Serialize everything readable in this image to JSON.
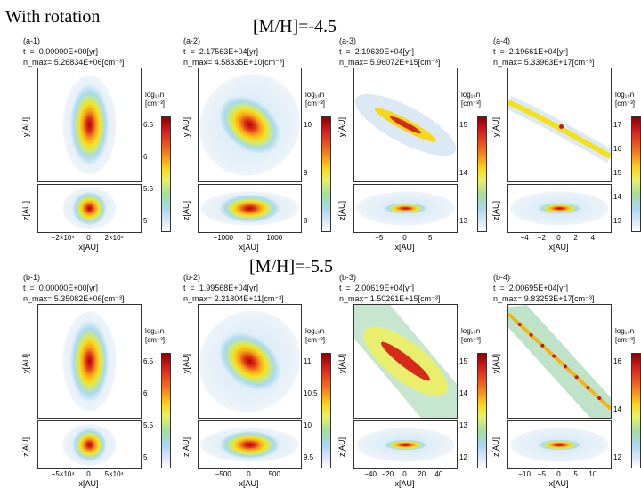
{
  "slide": {
    "label_rotation": "With rotation",
    "label_top": "[M/H]=-4.5",
    "label_bottom": "[M/H]=-5.5"
  },
  "panels": [
    {
      "id": "a-1",
      "time": "t  =  0.00000E+00[yr]",
      "nmax": "n_max= 5.26834E+06[cm⁻³]",
      "xlabel": "x[AU]",
      "ylabel_top": "y[AU]",
      "ylabel_bot": "z[AU]",
      "xticks": [
        "−2×10⁴",
        "0",
        "2×10⁴"
      ],
      "cb_title": "log₁₀n\n[cm⁻³]",
      "cb_ticks": [
        "6.5",
        "6",
        "5.5",
        "5"
      ],
      "shape": "ellipse"
    },
    {
      "id": "a-2",
      "time": "t  =  2.17563E+04[yr]",
      "nmax": "n_max= 4.58335E+10[cm⁻³]",
      "xlabel": "x[AU]",
      "ylabel_top": "y[AU]",
      "ylabel_bot": "z[AU]",
      "xticks": [
        "−1000",
        "0",
        "1000"
      ],
      "cb_title": "log₁₀n\n[cm⁻³]",
      "cb_ticks": [
        "10",
        "9",
        "8"
      ],
      "shape": "tilted"
    },
    {
      "id": "a-3",
      "time": "t  =  2.19639E+04[yr]",
      "nmax": "n_max= 5.96072E+15[cm⁻³]",
      "xlabel": "x[AU]",
      "ylabel_top": "y[AU]",
      "ylabel_bot": "z[AU]",
      "xticks": [
        "−5",
        "0",
        "5"
      ],
      "cb_title": "log₁₀n\n[cm⁻³]",
      "cb_ticks": [
        "15",
        "14",
        "13"
      ],
      "shape": "filament"
    },
    {
      "id": "a-4",
      "time": "t  =  2.19661E+04[yr]",
      "nmax": "n_max= 5.33963E+17[cm⁻³]",
      "xlabel": "x[AU]",
      "ylabel_top": "y[AU]",
      "ylabel_bot": "z[AU]",
      "xticks": [
        "−4",
        "−2",
        "0",
        "2",
        "4"
      ],
      "cb_title": "log₁₀n\n[cm⁻³]",
      "cb_ticks": [
        "17",
        "16",
        "15",
        "14",
        "13"
      ],
      "shape": "wave"
    },
    {
      "id": "b-1",
      "time": "t  =  0.00000E+00[yr]",
      "nmax": "n_max= 5.35082E+06[cm⁻³]",
      "xlabel": "x[AU]",
      "ylabel_top": "y[AU]",
      "ylabel_bot": "z[AU]",
      "xticks": [
        "−5×10⁴",
        "0",
        "5×10⁴"
      ],
      "cb_title": "log₁₀n\n[cm⁻³]",
      "cb_ticks": [
        "6.5",
        "6",
        "5.5",
        "5"
      ],
      "shape": "ellipse"
    },
    {
      "id": "b-2",
      "time": "t  =  1.99568E+04[yr]",
      "nmax": "n_max= 2.21804E+11[cm⁻³]",
      "xlabel": "x[AU]",
      "ylabel_top": "y[AU]",
      "ylabel_bot": "z[AU]",
      "xticks": [
        "−500",
        "0",
        "500"
      ],
      "cb_title": "log₁₀n\n[cm⁻³]",
      "cb_ticks": [
        "11",
        "10.5",
        "10",
        "9.5"
      ],
      "shape": "tilted"
    },
    {
      "id": "b-3",
      "time": "t  =  2.00619E+04[yr]",
      "nmax": "n_max= 1.50261E+15[cm⁻³]",
      "xlabel": "x[AU]",
      "ylabel_top": "y[AU]",
      "ylabel_bot": "z[AU]",
      "xticks": [
        "−40",
        "−20",
        "0",
        "20",
        "40"
      ],
      "cb_title": "log₁₀n\n[cm⁻³]",
      "cb_ticks": [
        "15",
        "14",
        "13",
        "12"
      ],
      "shape": "band"
    },
    {
      "id": "b-4",
      "time": "t  =  2.00695E+04[yr]",
      "nmax": "n_max= 9.83253E+17[cm⁻³]",
      "xlabel": "x[AU]",
      "ylabel_top": "y[AU]",
      "ylabel_bot": "z[AU]",
      "xticks": [
        "−10",
        "−5",
        "0",
        "5",
        "10"
      ],
      "cb_title": "log₁₀n\n[cm⁻³]",
      "cb_ticks": [
        "16",
        "14",
        "12"
      ],
      "shape": "diag"
    }
  ]
}
